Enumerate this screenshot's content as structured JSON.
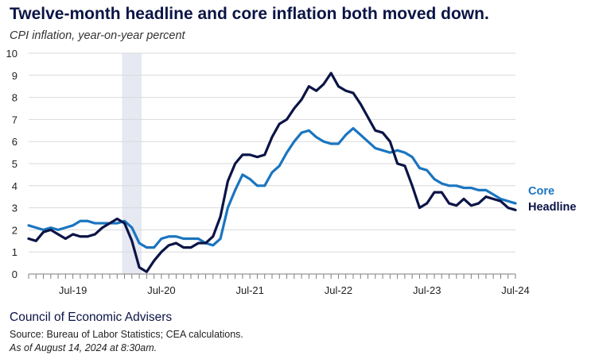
{
  "title": "Twelve-month headline and core inflation both moved down.",
  "subtitle": "CPI inflation, year-on-year percent",
  "footer": {
    "org": "Council of Economic Advisers",
    "source": "Source: Bureau of Labor Statistics; CEA calculations.",
    "as_of": "As of August 14, 2024 at 8:30am."
  },
  "colors": {
    "core": "#1a75c0",
    "headline": "#0b1446",
    "grid": "#d9d9d9",
    "recession_shade": "#e6e9f2"
  },
  "chart_data": {
    "type": "line",
    "title": "",
    "xlabel": "",
    "ylabel": "",
    "ylim": [
      0,
      10
    ],
    "yticks": [
      "0",
      "1",
      "2",
      "3",
      "4",
      "5",
      "6",
      "7",
      "8",
      "9",
      "10"
    ],
    "xtick_labels": [
      {
        "label": "Jul-19",
        "date": "2019-07"
      },
      {
        "label": "Jul-20",
        "date": "2020-07"
      },
      {
        "label": "Jul-21",
        "date": "2021-07"
      },
      {
        "label": "Jul-22",
        "date": "2022-07"
      },
      {
        "label": "Jul-23",
        "date": "2023-07"
      },
      {
        "label": "Jul-24",
        "date": "2024-07"
      }
    ],
    "x_range": [
      "2019-01",
      "2024-07"
    ],
    "shaded_periods": [
      {
        "start": "2020-02",
        "end": "2020-04"
      }
    ],
    "grid": true,
    "legend_placement": "right end of lines",
    "x": [
      "2019-01",
      "2019-02",
      "2019-03",
      "2019-04",
      "2019-05",
      "2019-06",
      "2019-07",
      "2019-08",
      "2019-09",
      "2019-10",
      "2019-11",
      "2019-12",
      "2020-01",
      "2020-02",
      "2020-03",
      "2020-04",
      "2020-05",
      "2020-06",
      "2020-07",
      "2020-08",
      "2020-09",
      "2020-10",
      "2020-11",
      "2020-12",
      "2021-01",
      "2021-02",
      "2021-03",
      "2021-04",
      "2021-05",
      "2021-06",
      "2021-07",
      "2021-08",
      "2021-09",
      "2021-10",
      "2021-11",
      "2021-12",
      "2022-01",
      "2022-02",
      "2022-03",
      "2022-04",
      "2022-05",
      "2022-06",
      "2022-07",
      "2022-08",
      "2022-09",
      "2022-10",
      "2022-11",
      "2022-12",
      "2023-01",
      "2023-02",
      "2023-03",
      "2023-04",
      "2023-05",
      "2023-06",
      "2023-07",
      "2023-08",
      "2023-09",
      "2023-10",
      "2023-11",
      "2023-12",
      "2024-01",
      "2024-02",
      "2024-03",
      "2024-04",
      "2024-05",
      "2024-06",
      "2024-07"
    ],
    "series": [
      {
        "name": "Core",
        "key": "core",
        "values": [
          2.2,
          2.1,
          2.0,
          2.1,
          2.0,
          2.1,
          2.2,
          2.4,
          2.4,
          2.3,
          2.3,
          2.3,
          2.3,
          2.4,
          2.1,
          1.4,
          1.2,
          1.2,
          1.6,
          1.7,
          1.7,
          1.6,
          1.6,
          1.6,
          1.4,
          1.3,
          1.6,
          3.0,
          3.8,
          4.5,
          4.3,
          4.0,
          4.0,
          4.6,
          4.9,
          5.5,
          6.0,
          6.4,
          6.5,
          6.2,
          6.0,
          5.9,
          5.9,
          6.3,
          6.6,
          6.3,
          6.0,
          5.7,
          5.6,
          5.5,
          5.6,
          5.5,
          5.3,
          4.8,
          4.7,
          4.3,
          4.1,
          4.0,
          4.0,
          3.9,
          3.9,
          3.8,
          3.8,
          3.6,
          3.4,
          3.3,
          3.2
        ]
      },
      {
        "name": "Headline",
        "key": "headline",
        "values": [
          1.6,
          1.5,
          1.9,
          2.0,
          1.8,
          1.6,
          1.8,
          1.7,
          1.7,
          1.8,
          2.1,
          2.3,
          2.5,
          2.3,
          1.5,
          0.3,
          0.1,
          0.6,
          1.0,
          1.3,
          1.4,
          1.2,
          1.2,
          1.4,
          1.4,
          1.7,
          2.6,
          4.2,
          5.0,
          5.4,
          5.4,
          5.3,
          5.4,
          6.2,
          6.8,
          7.0,
          7.5,
          7.9,
          8.5,
          8.3,
          8.6,
          9.1,
          8.5,
          8.3,
          8.2,
          7.7,
          7.1,
          6.5,
          6.4,
          6.0,
          5.0,
          4.9,
          4.0,
          3.0,
          3.2,
          3.7,
          3.7,
          3.2,
          3.1,
          3.4,
          3.1,
          3.2,
          3.5,
          3.4,
          3.3,
          3.0,
          2.9
        ]
      }
    ],
    "end_labels": {
      "core": "Core",
      "headline": "Headline"
    }
  }
}
